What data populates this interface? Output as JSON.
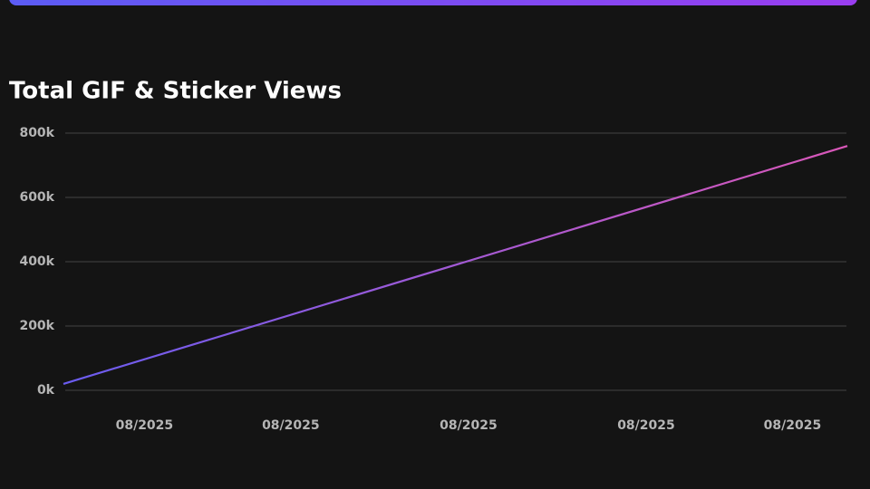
{
  "chart_data": {
    "type": "line",
    "title": "Total GIF & Sticker Views",
    "x": [
      0,
      30
    ],
    "series": [
      {
        "color": [
          "#6a5cf0",
          "#d957b8"
        ],
        "values": [
          20000,
          760000
        ]
      }
    ],
    "xlim": [
      0,
      30
    ],
    "xticks": [
      {
        "value": 3.1,
        "label": "08/2025"
      },
      {
        "value": 8.7,
        "label": "08/2025"
      },
      {
        "value": 15.5,
        "label": "08/2025"
      },
      {
        "value": 22.3,
        "label": "08/2025"
      },
      {
        "value": 27.9,
        "label": "08/2025"
      }
    ],
    "ylim": [
      0,
      800000
    ],
    "yticks": [
      {
        "value": 0,
        "label": "0k"
      },
      {
        "value": 200000,
        "label": "200k"
      },
      {
        "value": 400000,
        "label": "400k"
      },
      {
        "value": 600000,
        "label": "600k"
      },
      {
        "value": 800000,
        "label": "800k"
      }
    ],
    "grid": true
  }
}
